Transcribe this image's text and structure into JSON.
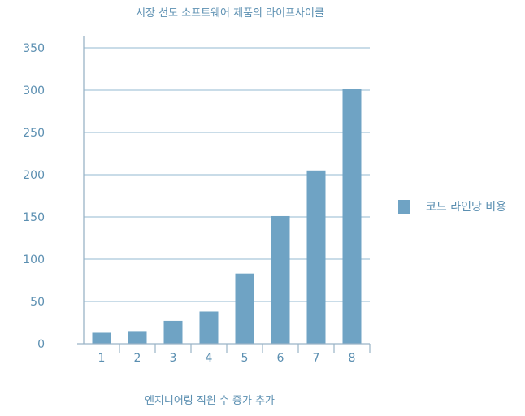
{
  "chart_data": {
    "type": "bar",
    "title": "시장 선도 소프트웨어 제품의 라이프사이클",
    "xlabel": "엔지니어링 직원 수 증가 추가",
    "ylabel": "",
    "categories": [
      "1",
      "2",
      "3",
      "4",
      "5",
      "6",
      "7",
      "8"
    ],
    "series": [
      {
        "name": "코드 라인당 비용",
        "values": [
          13,
          15,
          27,
          38,
          83,
          151,
          205,
          301
        ]
      }
    ],
    "ylim": [
      0,
      350
    ],
    "yticks": [
      0,
      50,
      100,
      150,
      200,
      250,
      300,
      350
    ],
    "grid": true,
    "legend_position": "right",
    "colors": {
      "bar": "#6fa3c4",
      "grid": "#a9c6da",
      "axis": "#9ab3c6",
      "text": "#5b8fb1"
    }
  }
}
